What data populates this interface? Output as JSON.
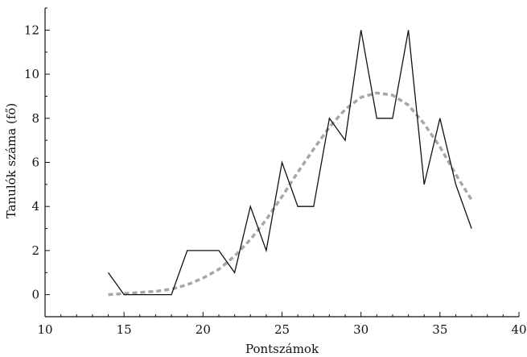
{
  "chart_data": {
    "type": "line",
    "title": "",
    "xlabel": "Pontszámok",
    "ylabel": "Tanulók száma (fő)",
    "xlim": [
      10,
      40
    ],
    "ylim": [
      -1.0,
      13.0
    ],
    "x_ticks": [
      10,
      15,
      20,
      25,
      30,
      35,
      40
    ],
    "y_ticks": [
      0,
      2,
      4,
      6,
      8,
      10,
      12
    ],
    "grid": false,
    "series": [
      {
        "style": "solid",
        "color": "#111111",
        "x": [
          14,
          15,
          16,
          17,
          18,
          19,
          20,
          21,
          22,
          23,
          24,
          25,
          26,
          27,
          28,
          29,
          30,
          31,
          32,
          33,
          34,
          35,
          36,
          37
        ],
        "y": [
          1,
          0,
          0,
          0,
          0,
          2,
          2,
          2,
          1,
          4,
          2,
          6,
          4,
          4,
          8,
          7,
          12,
          8,
          8,
          12,
          5,
          8,
          5,
          3
        ]
      },
      {
        "style": "dashed",
        "color": "#a6a6a6",
        "x": [
          14,
          15,
          16,
          17,
          18,
          19,
          20,
          21,
          22,
          23,
          24,
          25,
          26,
          27,
          28,
          29,
          30,
          31,
          32,
          33,
          34,
          35,
          36,
          37
        ],
        "y": [
          0.0,
          0.05,
          0.1,
          0.15,
          0.25,
          0.45,
          0.75,
          1.15,
          1.75,
          2.5,
          3.4,
          4.45,
          5.55,
          6.6,
          7.6,
          8.4,
          8.95,
          9.15,
          9.05,
          8.6,
          7.75,
          6.7,
          5.45,
          4.3
        ]
      }
    ]
  }
}
